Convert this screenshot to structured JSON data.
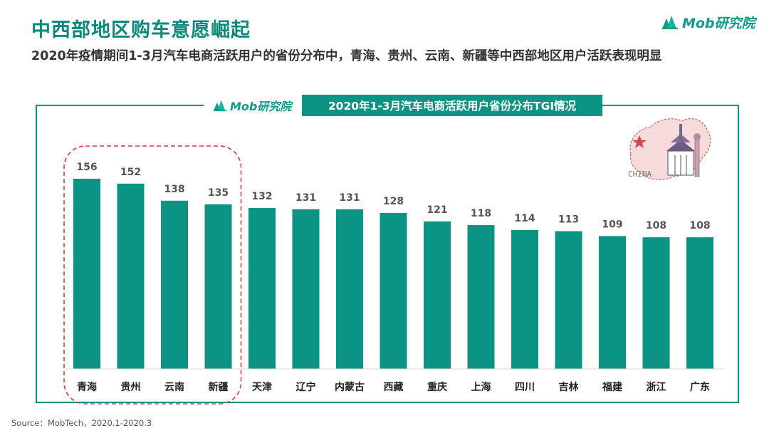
{
  "header": {
    "title": "中西部地区购车意愿崛起",
    "subtitle": "2020年疫情期间1-3月汽车电商活跃用户的省份分布中，青海、贵州、云南、新疆等中西部地区用户活跃表现明显",
    "brand": "Mob研究院"
  },
  "panel": {
    "brand": "Mob研究院",
    "title": "2020年1-3月汽车电商活跃用户省份分布TGI情况",
    "map_label": "CHINA"
  },
  "footer": {
    "source": "Source：MobTech，2020.1-2020.3"
  },
  "colors": {
    "bar": "#0b9384",
    "accent": "#0a8a7e",
    "highlight": "#e03a3a"
  },
  "chart_data": {
    "type": "bar",
    "title": "2020年1-3月汽车电商活跃用户省份分布TGI情况",
    "categories": [
      "青海",
      "贵州",
      "云南",
      "新疆",
      "天津",
      "辽宁",
      "内蒙古",
      "西藏",
      "重庆",
      "上海",
      "四川",
      "吉林",
      "福建",
      "浙江",
      "广东"
    ],
    "values": [
      156,
      152,
      138,
      135,
      132,
      131,
      131,
      128,
      121,
      118,
      114,
      113,
      109,
      108,
      108
    ],
    "highlighted": [
      "青海",
      "贵州",
      "云南",
      "新疆"
    ],
    "ylim": [
      0,
      175
    ],
    "grid": false,
    "legend": "none"
  }
}
